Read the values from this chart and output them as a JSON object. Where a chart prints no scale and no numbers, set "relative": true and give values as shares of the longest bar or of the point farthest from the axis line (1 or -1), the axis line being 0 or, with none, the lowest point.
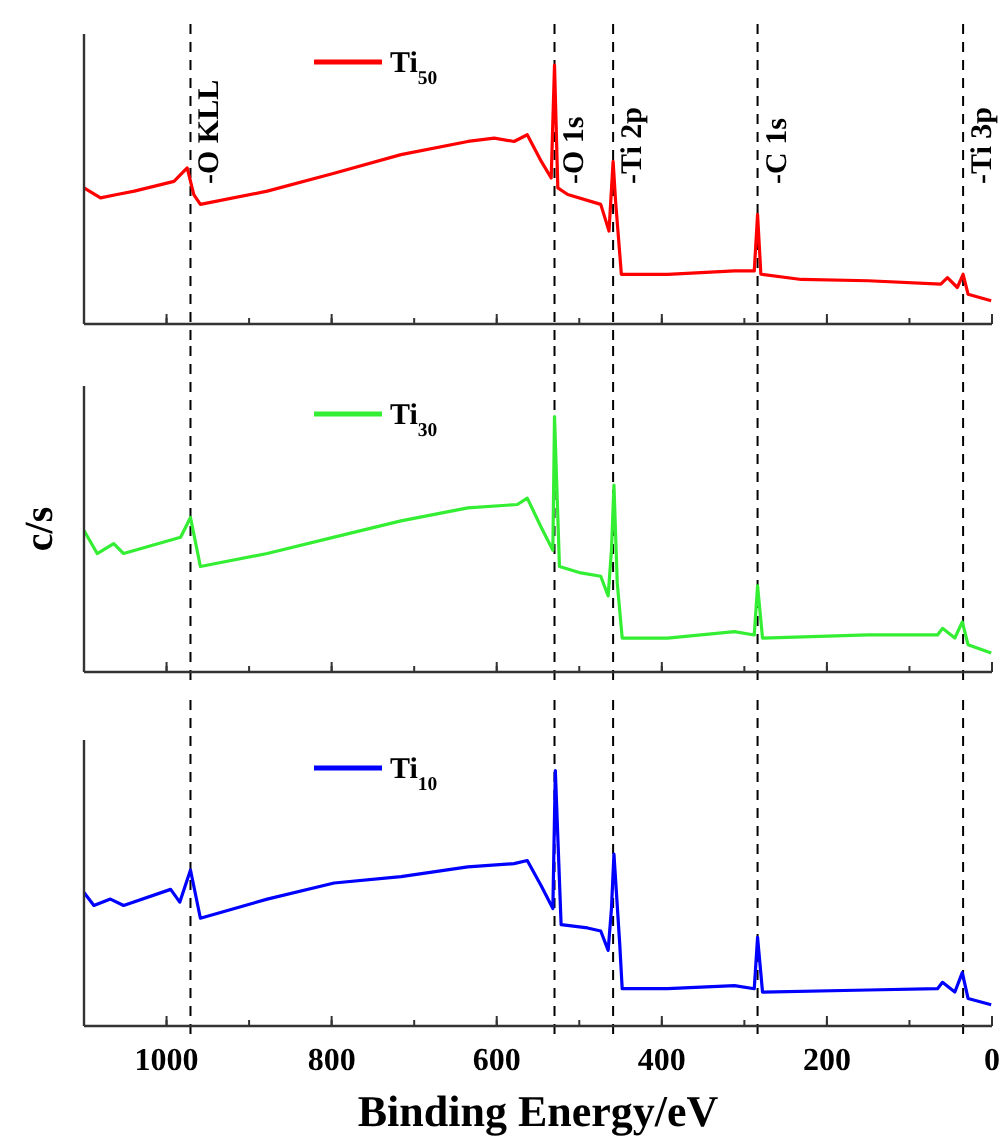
{
  "chart_data": [
    {
      "type": "line",
      "relative": true,
      "xlim": [
        1100,
        0
      ],
      "xticks": [
        1000,
        800,
        600,
        400,
        200,
        0
      ],
      "tick_labels": false,
      "legend": "top",
      "line_style": "solid",
      "x": [
        1100,
        1080,
        1060,
        1039,
        991,
        975,
        967,
        959,
        878,
        797,
        716,
        635,
        603,
        579,
        563,
        546,
        534,
        530,
        526,
        514,
        474,
        464,
        459,
        456,
        449,
        393,
        312,
        288,
        284,
        280,
        231,
        150,
        62,
        54,
        42,
        35,
        29,
        1
      ],
      "series": [
        {
          "name": "Ti$_{50}$",
          "color": "#ff0000",
          "values": [
            0.526,
            0.487,
            0.5,
            0.513,
            0.551,
            0.603,
            0.5,
            0.462,
            0.513,
            0.582,
            0.654,
            0.705,
            0.718,
            0.705,
            0.731,
            0.628,
            0.564,
            1,
            0.526,
            0.5,
            0.462,
            0.359,
            0.628,
            0.474,
            0.192,
            0.192,
            0.205,
            0.205,
            0.423,
            0.192,
            0.172,
            0.167,
            0.154,
            0.179,
            0.141,
            0.192,
            0.115,
            0.09
          ]
        }
      ],
      "ref_lines": [
        {
          "axis": "x",
          "value": 971,
          "label": "-O KLL",
          "line_style": "dashed",
          "color": "#000000"
        },
        {
          "axis": "x",
          "value": 530,
          "label": "-O 1s",
          "line_style": "dashed",
          "color": "#000000"
        },
        {
          "axis": "x",
          "value": 459,
          "label": "-Ti 2p",
          "line_style": "dashed",
          "color": "#000000"
        },
        {
          "axis": "x",
          "value": 284,
          "label": "-C 1s",
          "line_style": "dashed",
          "color": "#000000"
        },
        {
          "axis": "x",
          "value": 35,
          "label": "-Ti 3p",
          "line_style": "dashed",
          "color": "#000000"
        }
      ]
    },
    {
      "type": "line",
      "relative": true,
      "xlim": [
        1100,
        0
      ],
      "xticks": [
        1000,
        800,
        600,
        400,
        200,
        0
      ],
      "tick_labels": false,
      "legend": "top",
      "line_style": "solid",
      "ylabel": "c/s",
      "x": [
        1100,
        1084,
        1064,
        1052,
        983,
        971,
        959,
        878,
        797,
        716,
        635,
        575,
        563,
        546,
        532,
        530,
        524,
        498,
        474,
        465,
        461,
        458,
        454,
        448,
        393,
        312,
        288,
        284,
        278,
        150,
        66,
        60,
        45,
        36,
        29,
        1
      ],
      "series": [
        {
          "name": "Ti$_{30}$",
          "color": "#33ee33",
          "values": [
            0.554,
            0.464,
            0.503,
            0.464,
            0.528,
            0.605,
            0.413,
            0.464,
            0.528,
            0.592,
            0.643,
            0.656,
            0.681,
            0.566,
            0.477,
            1,
            0.413,
            0.388,
            0.375,
            0.298,
            0.477,
            0.732,
            0.349,
            0.133,
            0.133,
            0.158,
            0.145,
            0.337,
            0.133,
            0.145,
            0.145,
            0.171,
            0.133,
            0.196,
            0.107,
            0.074
          ]
        }
      ],
      "ref_lines": [
        {
          "axis": "x",
          "value": 971,
          "line_style": "dashed",
          "color": "#000000"
        },
        {
          "axis": "x",
          "value": 530,
          "line_style": "dashed",
          "color": "#000000"
        },
        {
          "axis": "x",
          "value": 459,
          "line_style": "dashed",
          "color": "#000000"
        },
        {
          "axis": "x",
          "value": 284,
          "line_style": "dashed",
          "color": "#000000"
        },
        {
          "axis": "x",
          "value": 35,
          "line_style": "dashed",
          "color": "#000000"
        }
      ]
    },
    {
      "type": "line",
      "relative": true,
      "xlim": [
        1100,
        0
      ],
      "xticks": [
        1000,
        800,
        600,
        400,
        200,
        0
      ],
      "tick_labels": "x",
      "legend": "top",
      "line_style": "solid",
      "xlabel": "Binding Energy/eV",
      "x": [
        1100,
        1088,
        1068,
        1052,
        995,
        984,
        971,
        959,
        878,
        797,
        716,
        635,
        579,
        563,
        546,
        532,
        529,
        522,
        490,
        474,
        465,
        461,
        458,
        451,
        448,
        393,
        312,
        288,
        284,
        278,
        150,
        66,
        60,
        45,
        36,
        29,
        1
      ],
      "series": [
        {
          "name": "Ti$_{10}$",
          "color": "#0000ff",
          "values": [
            0.523,
            0.472,
            0.497,
            0.472,
            0.535,
            0.485,
            0.611,
            0.422,
            0.497,
            0.56,
            0.585,
            0.623,
            0.636,
            0.648,
            0.548,
            0.46,
            1,
            0.397,
            0.384,
            0.372,
            0.296,
            0.46,
            0.673,
            0.322,
            0.146,
            0.146,
            0.158,
            0.146,
            0.347,
            0.133,
            0.141,
            0.146,
            0.171,
            0.133,
            0.209,
            0.108,
            0.083
          ]
        }
      ],
      "ref_lines": [
        {
          "axis": "x",
          "value": 971,
          "line_style": "dashed",
          "color": "#000000"
        },
        {
          "axis": "x",
          "value": 530,
          "line_style": "dashed",
          "color": "#000000"
        },
        {
          "axis": "x",
          "value": 459,
          "line_style": "dashed",
          "color": "#000000"
        },
        {
          "axis": "x",
          "value": 284,
          "line_style": "dashed",
          "color": "#000000"
        },
        {
          "axis": "x",
          "value": 35,
          "line_style": "dashed",
          "color": "#000000"
        }
      ]
    }
  ]
}
